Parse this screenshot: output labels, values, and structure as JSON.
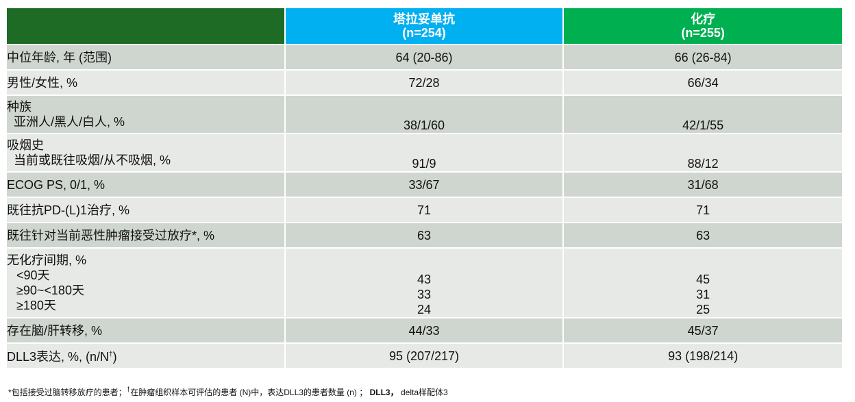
{
  "header": {
    "col_a_name": "塔拉妥单抗",
    "col_a_n": "(n=254)",
    "col_b_name": "化疗",
    "col_b_n": "(n=255)"
  },
  "rows": [
    {
      "label": "中位年龄, 年 (范围)",
      "a": "64 (20-86)",
      "b": "66 (26-84)"
    },
    {
      "label": "男性/女性, %",
      "a": "72/28",
      "b": "66/34"
    },
    {
      "label": "种族",
      "sublabel": "亚洲人/黑人/白人, %",
      "a": "38/1/60",
      "b": "42/1/55"
    },
    {
      "label": "吸烟史",
      "sublabel": "当前或既往吸烟/从不吸烟, %",
      "a": "91/9",
      "b": "88/12"
    },
    {
      "label": "ECOG PS, 0/1, %",
      "a": "33/67",
      "b": "31/68"
    },
    {
      "label": "既往抗PD-(L)1治疗, %",
      "a": "71",
      "b": "71"
    },
    {
      "label": "既往针对当前恶性肿瘤接受过放疗*, %",
      "a": "63",
      "b": "63"
    },
    {
      "label": "无化疗间期, %",
      "sublabels": [
        "<90天",
        "≥90~<180天",
        "≥180天"
      ],
      "a_values": [
        "43",
        "33",
        "24"
      ],
      "b_values": [
        "45",
        "31",
        "25"
      ]
    },
    {
      "label": "存在脑/肝转移, %",
      "a": "44/33",
      "b": "45/37"
    },
    {
      "label_prefix": "DLL3表达, %, (n/N",
      "label_sup": "†",
      "label_suffix": ")",
      "a": "95 (207/217)",
      "b": "93 (198/214)"
    }
  ],
  "footnote": {
    "part1": "*包括接受过脑转移放疗的患者；",
    "dagger": "†",
    "part2": "在肿瘤组织样本可评估的患者 (N)中，表达DLL3的患者数量 (n) ；",
    "abbr": "DLL3，",
    "part3": "delta样配体3"
  }
}
